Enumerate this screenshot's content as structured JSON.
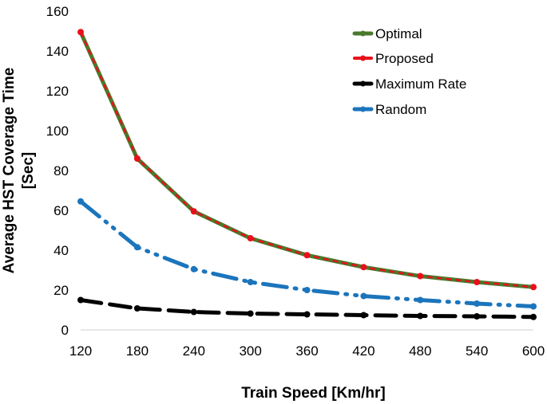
{
  "chart_data": {
    "type": "line",
    "title": "",
    "xlabel": "Train Speed [Km/hr]",
    "ylabel_line1": "Average HST Coverage Time",
    "ylabel_line2": "[Sec]",
    "x": [
      120,
      180,
      240,
      300,
      360,
      420,
      480,
      540,
      600
    ],
    "x_tick_labels": [
      "120",
      "180",
      "240",
      "300",
      "360",
      "420",
      "480",
      "540",
      "600"
    ],
    "ylim": [
      0,
      160
    ],
    "y_ticks": [
      0,
      20,
      40,
      60,
      80,
      100,
      120,
      140,
      160
    ],
    "y_tick_labels": [
      "0",
      "20",
      "40",
      "60",
      "80",
      "100",
      "120",
      "140",
      "160"
    ],
    "grid": false,
    "legend_position": "top-right",
    "series": [
      {
        "name": "Optimal",
        "color": "#4a7a2c",
        "style": "solid",
        "values": [
          149.5,
          86,
          59.5,
          46,
          37.5,
          31.5,
          27,
          24,
          21.5
        ]
      },
      {
        "name": "Proposed",
        "color": "#e8101a",
        "style": "dashed",
        "values": [
          149.5,
          86,
          59.5,
          46,
          37.5,
          31.5,
          27,
          24,
          21.5
        ]
      },
      {
        "name": "Maximum Rate",
        "color": "#000000",
        "style": "longdash",
        "values": [
          15,
          10.8,
          9,
          8.2,
          7.8,
          7.4,
          7,
          6.8,
          6.5
        ]
      },
      {
        "name": "Random",
        "color": "#1b75bc",
        "style": "dashdotdot",
        "values": [
          64.5,
          41.5,
          30.5,
          24,
          20,
          17,
          15,
          13.2,
          11.8
        ]
      }
    ]
  }
}
